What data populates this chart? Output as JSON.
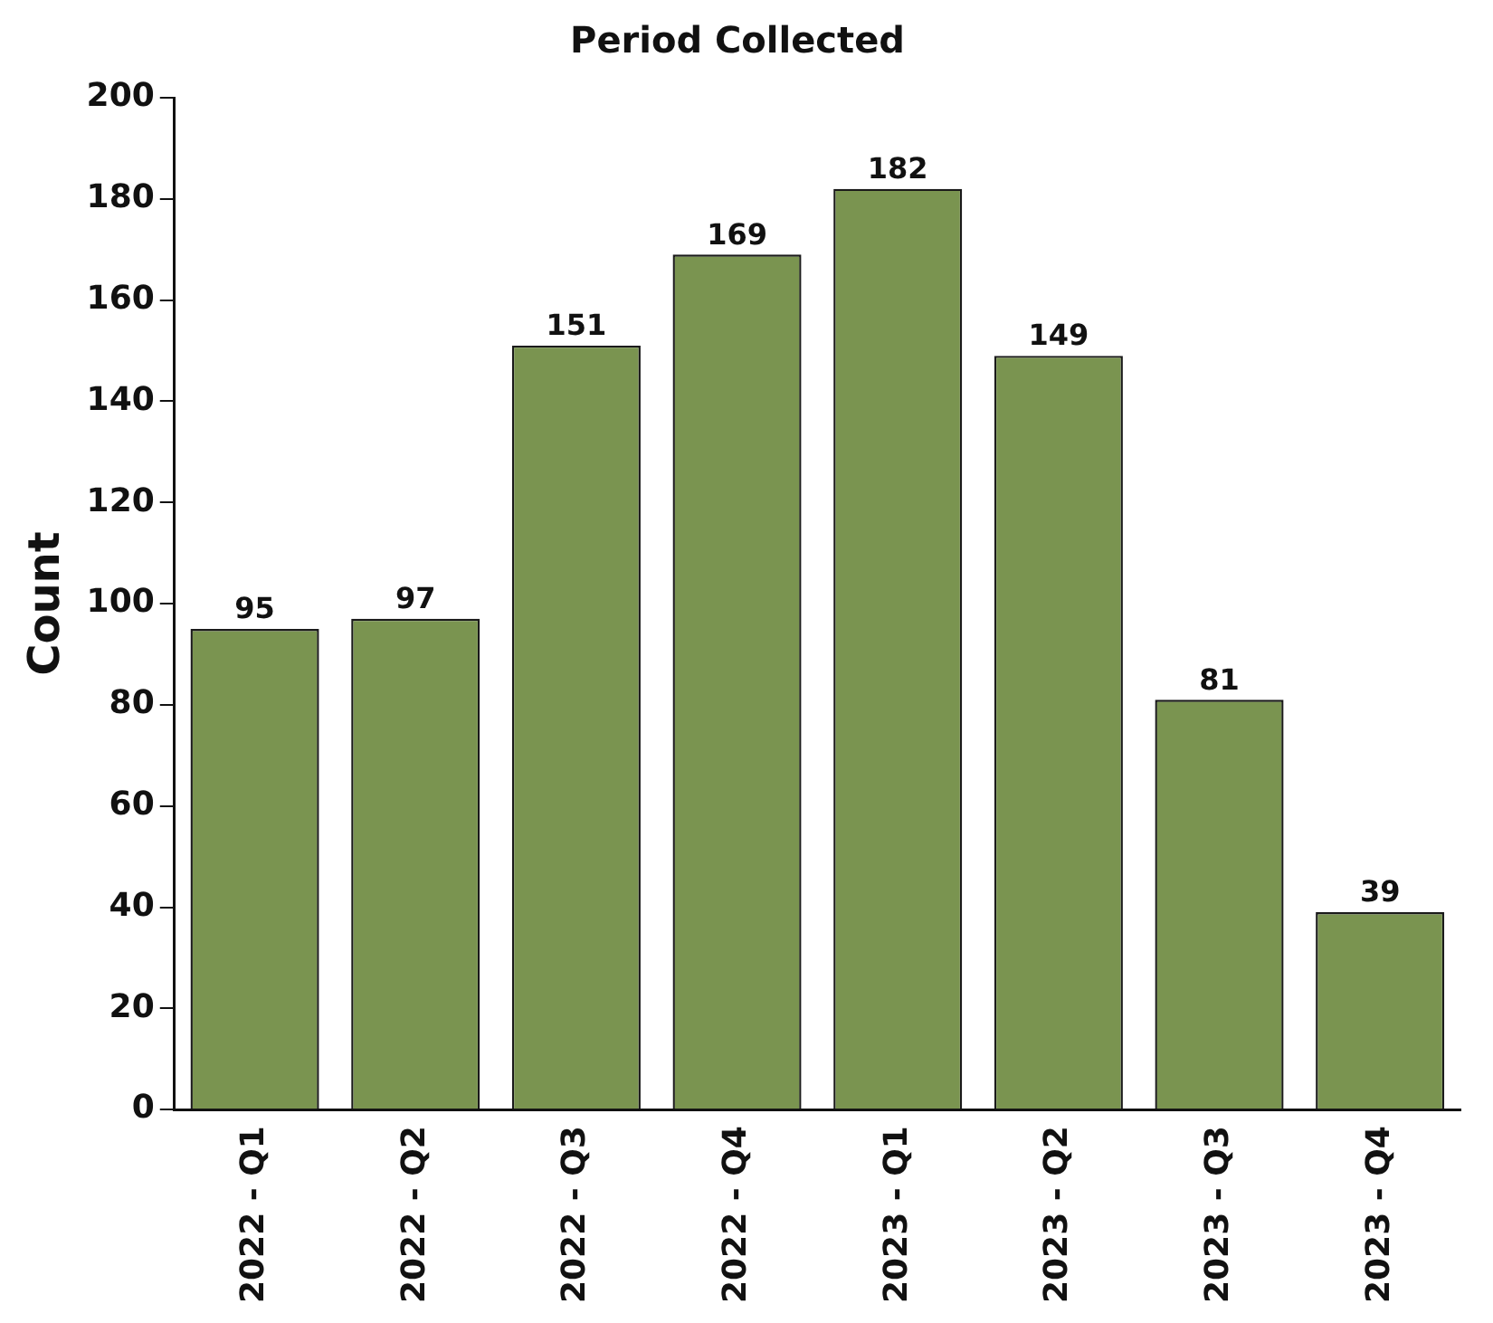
{
  "chart_data": {
    "type": "bar",
    "title": "Period Collected",
    "ylabel": "Count",
    "categories": [
      "2022 - Q1",
      "2022 - Q2",
      "2022 - Q3",
      "2022 - Q4",
      "2023 - Q1",
      "2023 - Q2",
      "2023 - Q3",
      "2023 - Q4"
    ],
    "values": [
      95,
      97,
      151,
      169,
      182,
      149,
      81,
      39
    ],
    "color": "#7a9450",
    "ylim": [
      0,
      200
    ],
    "yticks": [
      0,
      20,
      40,
      60,
      80,
      100,
      120,
      140,
      160,
      180,
      200
    ],
    "data_labels": true,
    "grid": false,
    "legend": false
  }
}
